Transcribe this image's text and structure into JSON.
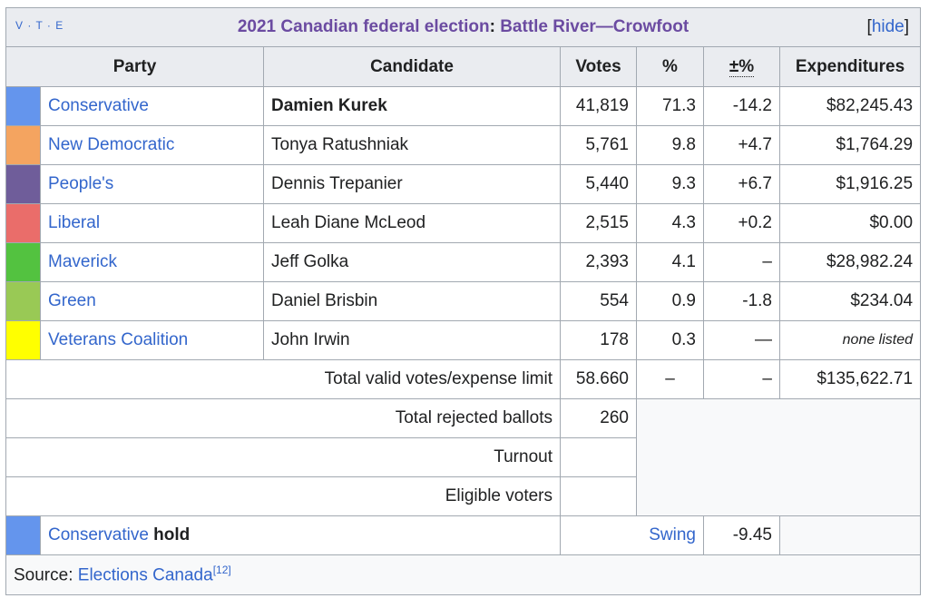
{
  "title": {
    "vte": "V · T · E",
    "year_party": "2021 Canadian federal election",
    "separator": ": ",
    "riding": "Battle River—Crowfoot",
    "hide_open": "[",
    "hide_label": "hide",
    "hide_close": "]"
  },
  "columns": [
    "Party",
    "Candidate",
    "Votes",
    "%",
    "±%",
    "Expenditures"
  ],
  "rows": [
    {
      "color": "#6495ED",
      "party": "Conservative",
      "candidate": "Damien Kurek",
      "votes": "41,819",
      "pct": "71.3",
      "change": "-14.2",
      "expenditures": "$82,245.43",
      "winner": true
    },
    {
      "color": "#F4A460",
      "party": "New Democratic",
      "candidate": "Tonya Ratushniak",
      "votes": "5,761",
      "pct": "9.8",
      "change": "+4.7",
      "expenditures": "$1,764.29"
    },
    {
      "color": "#6F5D9A",
      "party": "People's",
      "candidate": "Dennis Trepanier",
      "votes": "5,440",
      "pct": "9.3",
      "change": "+6.7",
      "expenditures": "$1,916.25"
    },
    {
      "color": "#EA6D6A",
      "party": "Liberal",
      "candidate": "Leah Diane McLeod",
      "votes": "2,515",
      "pct": "4.3",
      "change": "+0.2",
      "expenditures": "$0.00"
    },
    {
      "color": "#53C240",
      "party": "Maverick",
      "candidate": "Jeff Golka",
      "votes": "2,393",
      "pct": "4.1",
      "change": "–",
      "expenditures": "$28,982.24"
    },
    {
      "color": "#99C955",
      "party": "Green",
      "candidate": "Daniel Brisbin",
      "votes": "554",
      "pct": "0.9",
      "change": "-1.8",
      "expenditures": "$234.04"
    },
    {
      "color": "#FFFF00",
      "party": "Veterans Coalition",
      "candidate": "John Irwin",
      "votes": "178",
      "pct": "0.3",
      "change": "—",
      "expenditures": "none listed",
      "expenditures_italic": true
    }
  ],
  "totals": {
    "valid_label": "Total valid votes/expense limit",
    "valid_votes": "58.660",
    "valid_pct": "–",
    "valid_change": "–",
    "valid_expenditures": "$135,622.71",
    "rejected_label": "Total rejected ballots",
    "rejected_votes": "260",
    "turnout_label": "Turnout",
    "eligible_label": "Eligible voters"
  },
  "hold": {
    "color": "#6495ED",
    "party": "Conservative",
    "word": "hold",
    "swing_label": "Swing",
    "swing_value": "-9.45"
  },
  "source": {
    "prefix": "Source: ",
    "link": "Elections Canada",
    "ref": "[12]"
  }
}
